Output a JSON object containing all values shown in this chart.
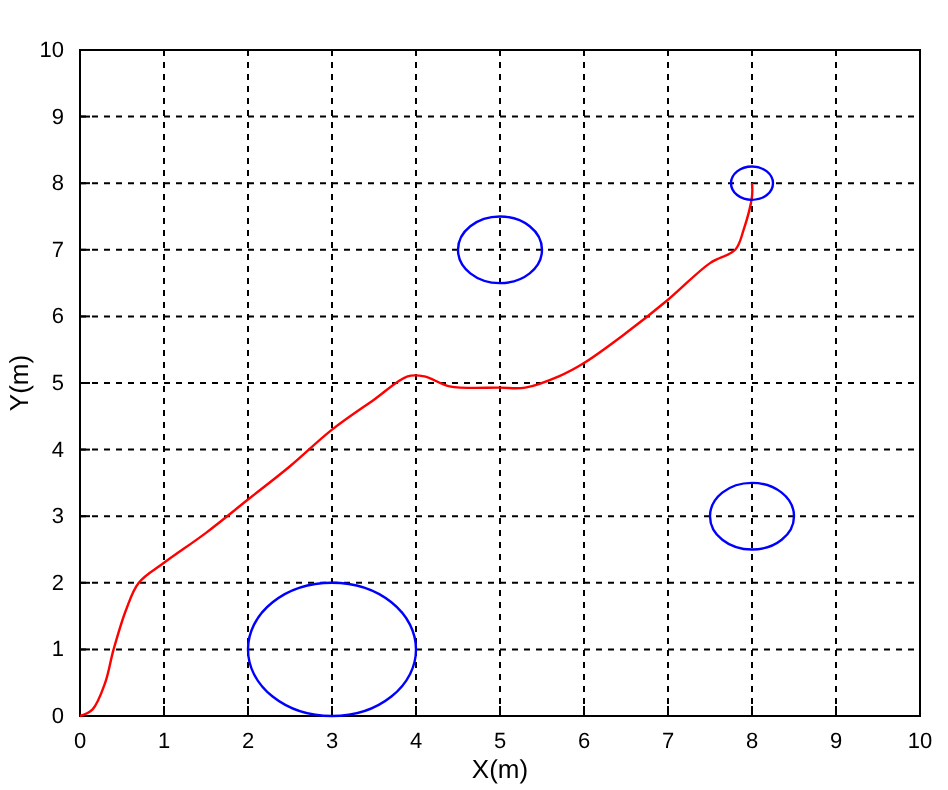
{
  "chart_data": {
    "type": "line",
    "xlabel": "X(m)",
    "ylabel": "Y(m)",
    "xlim": [
      0,
      10
    ],
    "ylim": [
      0,
      10
    ],
    "xticks": [
      0,
      1,
      2,
      3,
      4,
      5,
      6,
      7,
      8,
      9,
      10
    ],
    "yticks": [
      0,
      1,
      2,
      3,
      4,
      5,
      6,
      7,
      8,
      9,
      10
    ],
    "grid": true,
    "series": [
      {
        "color": "#ff0000",
        "x": [
          0,
          0.15,
          0.3,
          0.4,
          0.55,
          0.7,
          1,
          1.5,
          2,
          2.5,
          3,
          3.5,
          3.9,
          4.1,
          4.4,
          5,
          5.3,
          5.7,
          6,
          6.5,
          7,
          7.5,
          7.8,
          7.9,
          8,
          8
        ],
        "values": [
          0,
          0.1,
          0.5,
          1,
          1.6,
          2,
          2.3,
          2.75,
          3.25,
          3.75,
          4.3,
          4.75,
          5.1,
          5.1,
          4.95,
          4.93,
          4.93,
          5.1,
          5.3,
          5.75,
          6.25,
          6.8,
          7,
          7.3,
          7.8,
          8
        ]
      }
    ]
  }
}
